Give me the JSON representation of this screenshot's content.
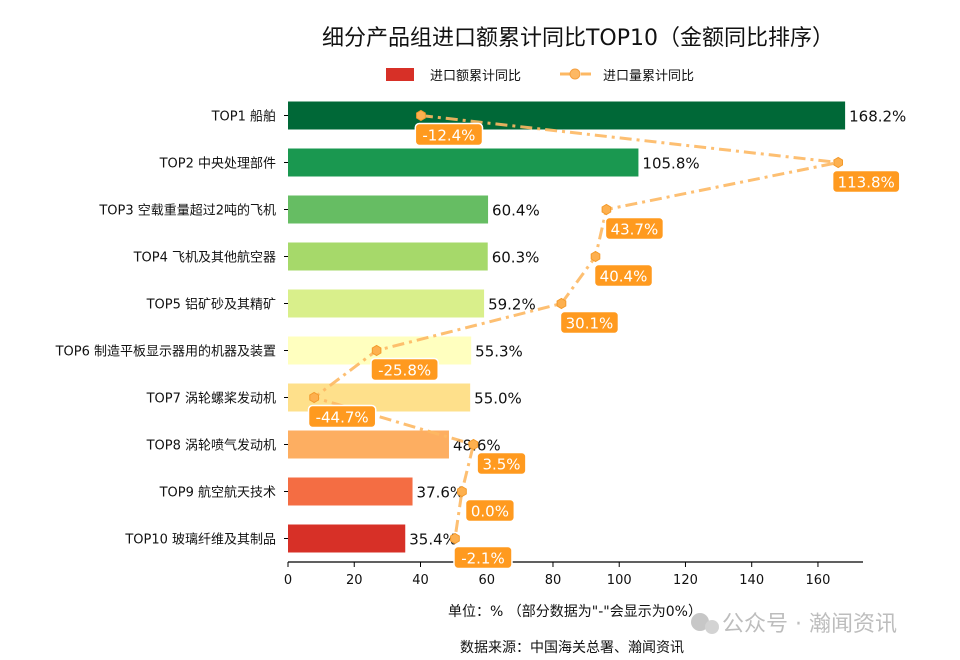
{
  "chart_data": {
    "type": "bar",
    "orientation": "horizontal",
    "title": "细分产品组进口额累计同比TOP10（金额同比排序）",
    "categories": [
      "TOP1 船舶",
      "TOP2 中央处理部件",
      "TOP3 空载重量超过2吨的飞机",
      "TOP4 飞机及其他航空器",
      "TOP5 铝矿砂及其精矿",
      "TOP6 制造平板显示器用的机器及装置",
      "TOP7 涡轮螺桨发动机",
      "TOP8 涡轮喷气发动机",
      "TOP9 航空航天技术",
      "TOP10 玻璃纤维及其制品"
    ],
    "series": [
      {
        "name": "进口额累计同比",
        "type": "bar",
        "values": [
          168.2,
          105.8,
          60.4,
          60.3,
          59.2,
          55.3,
          55.0,
          48.6,
          37.6,
          35.4
        ],
        "labels": [
          "168.2%",
          "105.8%",
          "60.4%",
          "60.3%",
          "59.2%",
          "55.3%",
          "55.0%",
          "48.6%",
          "37.6%",
          "35.4%"
        ],
        "colors": [
          "#006837",
          "#1a9850",
          "#66bd63",
          "#a6d96a",
          "#d9ef8b",
          "#ffffbf",
          "#fee08b",
          "#fdae61",
          "#f46d43",
          "#d73027"
        ]
      },
      {
        "name": "进口量累计同比",
        "type": "line",
        "style": "dash-dot",
        "marker": "hexagon",
        "color": "#fdb863",
        "values": [
          -12.4,
          113.8,
          43.7,
          40.4,
          30.1,
          -25.8,
          -44.7,
          3.5,
          0.0,
          -2.1
        ],
        "labels": [
          "-12.4%",
          "113.8%",
          "43.7%",
          "40.4%",
          "30.1%",
          "-25.8%",
          "-44.7%",
          "3.5%",
          "0.0%",
          "-2.1%"
        ],
        "label_bg": "#ff9a1f",
        "secondary_axis_hidden": true,
        "xlim": [
          -52.6,
          121.3
        ]
      }
    ],
    "xlim": [
      0,
      173.6
    ],
    "xticks": [
      0,
      20,
      40,
      60,
      80,
      100,
      120,
      140,
      160
    ],
    "xlabel": "单位：%  （部分数据为\"-\"会显示为0%）",
    "source": "数据来源：中国海关总署、瀚闻资讯",
    "legend_position": "top-center",
    "grid": false
  },
  "watermark": "公众号 · 瀚闻资讯"
}
